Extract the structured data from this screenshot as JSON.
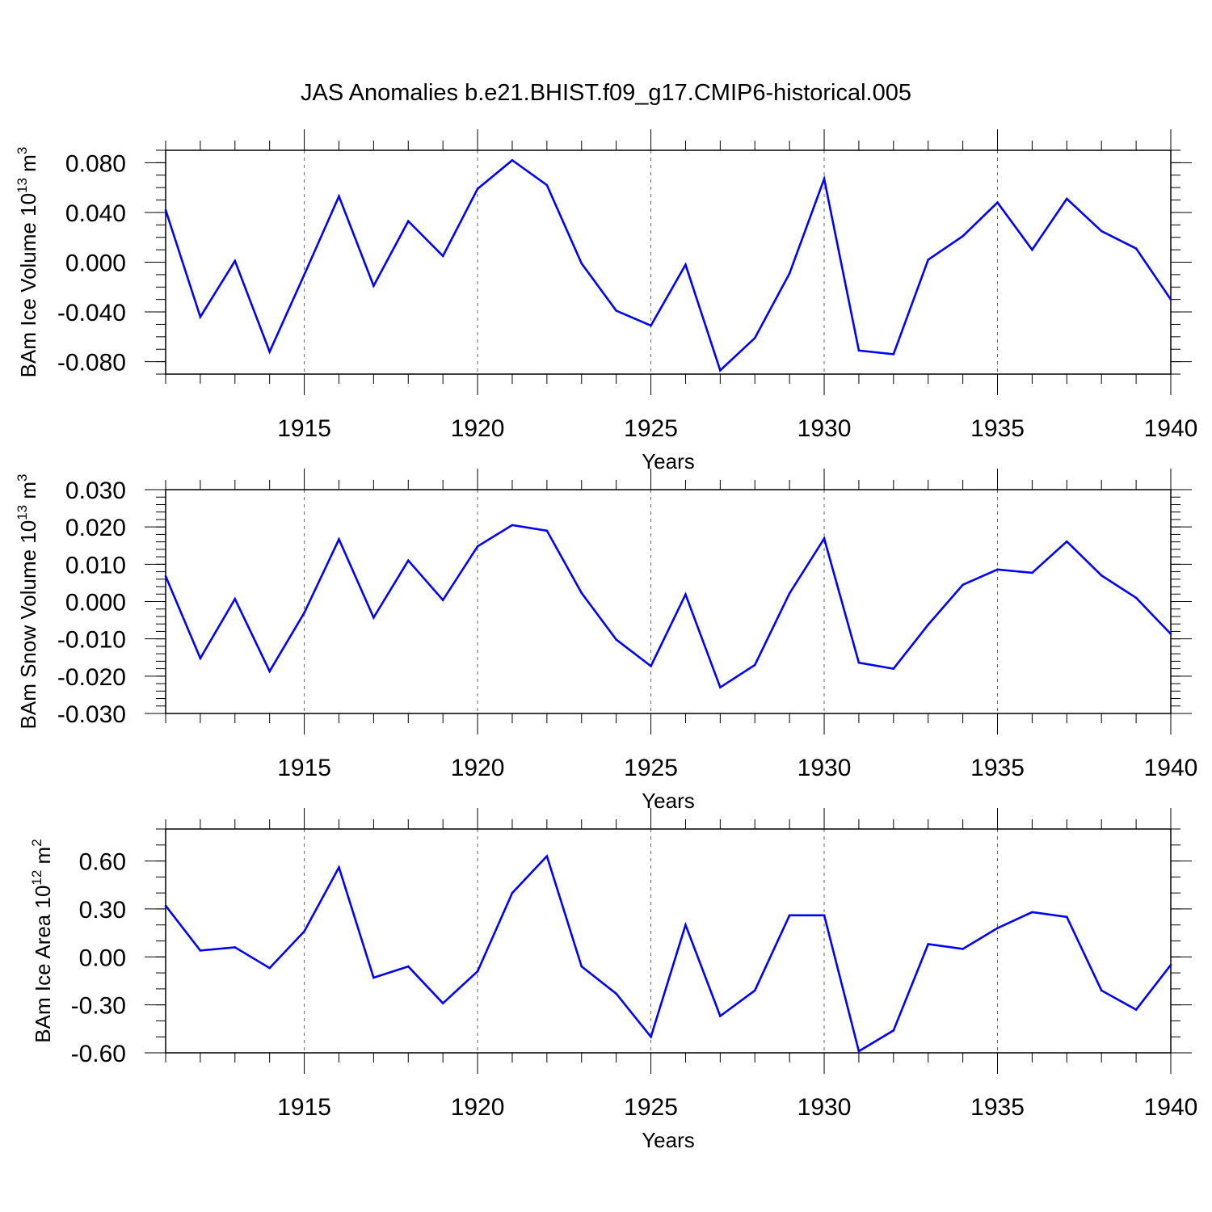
{
  "title": "JAS Anomalies b.e21.BHIST.f09_g17.CMIP6-historical.005",
  "colors": {
    "line": "#0000ff",
    "axis": "#000000",
    "grid": "#666666"
  },
  "chart_data": [
    {
      "type": "line",
      "name": "ice-volume",
      "ylabel": {
        "prefix": "BAm Ice Volume 10",
        "exp": "13",
        "mid": " m",
        "unit_exp": "3"
      },
      "xlabel": "Years",
      "xlim": [
        1911,
        1940
      ],
      "ylim": [
        -0.09,
        0.09
      ],
      "x_tick_values": [
        1915,
        1920,
        1925,
        1930,
        1935,
        1940
      ],
      "x_tick_labels": [
        "1915",
        "1920",
        "1925",
        "1930",
        "1935",
        "1940"
      ],
      "y_tick_values": [
        0.08,
        0.04,
        0.0,
        -0.04,
        -0.08
      ],
      "y_tick_labels": [
        "0.080",
        "0.040",
        "0.000",
        "-0.040",
        "-0.080"
      ],
      "y_minor_step": 0.01,
      "grid": "vertical dashed at major x ticks",
      "x": [
        1911,
        1912,
        1913,
        1914,
        1915,
        1916,
        1917,
        1918,
        1919,
        1920,
        1921,
        1922,
        1923,
        1924,
        1925,
        1926,
        1927,
        1928,
        1929,
        1930,
        1931,
        1932,
        1933,
        1934,
        1935,
        1936,
        1937,
        1938,
        1939,
        1940
      ],
      "values": [
        0.042,
        -0.044,
        0.001,
        -0.072,
        -0.01,
        0.053,
        -0.019,
        0.033,
        0.005,
        0.059,
        0.082,
        0.062,
        -0.001,
        -0.039,
        -0.051,
        -0.002,
        -0.087,
        -0.061,
        -0.009,
        0.067,
        -0.071,
        -0.074,
        0.002,
        0.021,
        0.048,
        0.01,
        0.051,
        0.025,
        0.011,
        -0.03
      ]
    },
    {
      "type": "line",
      "name": "snow-volume",
      "ylabel": {
        "prefix": "BAm Snow Volume 10",
        "exp": "13",
        "mid": " m",
        "unit_exp": "3"
      },
      "xlabel": "Years",
      "xlim": [
        1911,
        1940
      ],
      "ylim": [
        -0.03,
        0.03
      ],
      "x_tick_values": [
        1915,
        1920,
        1925,
        1930,
        1935,
        1940
      ],
      "x_tick_labels": [
        "1915",
        "1920",
        "1925",
        "1930",
        "1935",
        "1940"
      ],
      "y_tick_values": [
        0.03,
        0.02,
        0.01,
        0.0,
        -0.01,
        -0.02,
        -0.03
      ],
      "y_tick_labels": [
        "0.030",
        "0.020",
        "0.010",
        "0.000",
        "-0.010",
        "-0.020",
        "-0.030"
      ],
      "y_minor_step": 0.002,
      "grid": "vertical dashed at major x ticks",
      "x": [
        1911,
        1912,
        1913,
        1914,
        1915,
        1916,
        1917,
        1918,
        1919,
        1920,
        1921,
        1922,
        1923,
        1924,
        1925,
        1926,
        1927,
        1928,
        1929,
        1930,
        1931,
        1932,
        1933,
        1934,
        1935,
        1936,
        1937,
        1938,
        1939,
        1940
      ],
      "values": [
        0.0068,
        -0.0152,
        0.0007,
        -0.0187,
        -0.003,
        0.0167,
        -0.0043,
        0.011,
        0.0004,
        0.0148,
        0.0205,
        0.019,
        0.0023,
        -0.0102,
        -0.0173,
        0.0019,
        -0.023,
        -0.017,
        0.0022,
        0.0169,
        -0.0164,
        -0.018,
        -0.0062,
        0.0045,
        0.0086,
        0.0077,
        0.0161,
        0.007,
        0.001,
        -0.0087
      ]
    },
    {
      "type": "line",
      "name": "ice-area",
      "ylabel": {
        "prefix": "BAm Ice Area 10",
        "exp": "12",
        "mid": " m",
        "unit_exp": "2"
      },
      "xlabel": "Years",
      "xlim": [
        1911,
        1940
      ],
      "ylim": [
        -0.6,
        0.8
      ],
      "x_tick_values": [
        1915,
        1920,
        1925,
        1930,
        1935,
        1940
      ],
      "x_tick_labels": [
        "1915",
        "1920",
        "1925",
        "1930",
        "1935",
        "1940"
      ],
      "y_tick_values": [
        0.6,
        0.3,
        0.0,
        -0.3,
        -0.6
      ],
      "y_tick_labels": [
        "0.60",
        "0.30",
        "0.00",
        "-0.30",
        "-0.60"
      ],
      "y_minor_step": 0.1,
      "grid": "vertical dashed at major x ticks",
      "x": [
        1911,
        1912,
        1913,
        1914,
        1915,
        1916,
        1917,
        1918,
        1919,
        1920,
        1921,
        1922,
        1923,
        1924,
        1925,
        1926,
        1927,
        1928,
        1929,
        1930,
        1931,
        1932,
        1933,
        1934,
        1935,
        1936,
        1937,
        1938,
        1939,
        1940
      ],
      "values": [
        0.32,
        0.04,
        0.06,
        -0.07,
        0.16,
        0.56,
        -0.13,
        -0.06,
        -0.29,
        -0.09,
        0.4,
        0.63,
        -0.06,
        -0.23,
        -0.5,
        0.2,
        -0.37,
        -0.21,
        0.26,
        0.26,
        -0.59,
        -0.46,
        0.08,
        0.05,
        0.18,
        0.28,
        0.25,
        -0.21,
        -0.33,
        -0.05
      ]
    }
  ]
}
